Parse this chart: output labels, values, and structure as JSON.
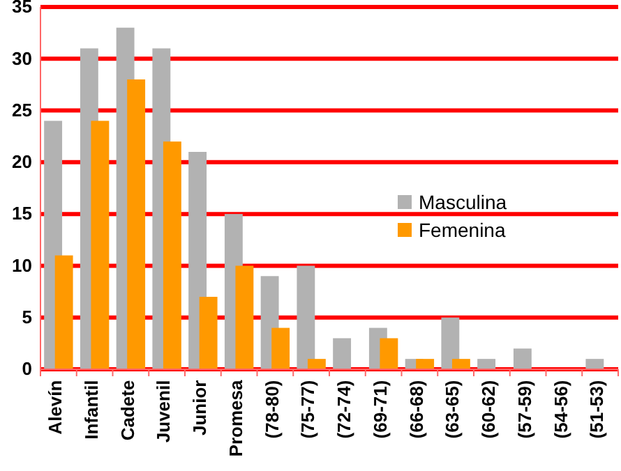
{
  "chart_data": {
    "type": "bar",
    "categories": [
      "Alevín",
      "Infantil",
      "Cadete",
      "Juvenil",
      "Junior",
      "Promesa",
      "(78-80)",
      "(75-77)",
      "(72-74)",
      "(69-71)",
      "(66-68)",
      "(63-65)",
      "(60-62)",
      "(57-59)",
      "(54-56)",
      "(51-53)"
    ],
    "series": [
      {
        "name": "Masculina",
        "color": "#b2b2b2",
        "values": [
          24,
          31,
          33,
          31,
          21,
          15,
          9,
          10,
          3,
          4,
          1,
          5,
          1,
          2,
          0,
          1
        ]
      },
      {
        "name": "Femenina",
        "color": "#ff9900",
        "values": [
          11,
          24,
          28,
          22,
          7,
          10,
          4,
          1,
          0,
          3,
          1,
          1,
          0,
          0,
          0,
          0
        ]
      }
    ],
    "ylim": [
      0,
      35
    ],
    "yticks": [
      0,
      5,
      10,
      15,
      20,
      25,
      30,
      35
    ],
    "grid": "y",
    "legend": "right"
  }
}
